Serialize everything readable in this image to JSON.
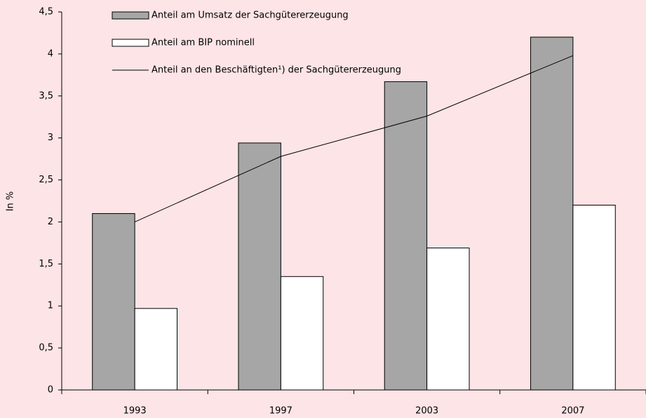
{
  "chart_data": {
    "type": "bar",
    "categories": [
      "1993",
      "1997",
      "2003",
      "2007"
    ],
    "y_label": "In %",
    "series": [
      {
        "name": "Anteil am Umsatz der Sachgütererzeugung",
        "type": "bar",
        "color": "#a6a6a6",
        "values": [
          2.1,
          2.94,
          3.67,
          4.2
        ]
      },
      {
        "name": "Anteil am BIP nominell",
        "type": "bar",
        "color": "#ffffff",
        "values": [
          0.97,
          1.35,
          1.69,
          2.2
        ]
      },
      {
        "name": "Anteil an den Beschäftigten¹) der Sachgütererzeugung",
        "type": "line",
        "color": "#000000",
        "values": [
          2.0,
          2.78,
          3.26,
          3.98
        ]
      }
    ],
    "ylim": [
      0,
      4.5
    ],
    "yticks": [
      0,
      {
        "value": 0.5,
        "label": "0,5"
      },
      1,
      {
        "value": 1.5,
        "label": "1,5"
      },
      2,
      {
        "value": 2.5,
        "label": "2,5"
      },
      3,
      {
        "value": 3.5,
        "label": "3,5"
      },
      4,
      {
        "value": 4.5,
        "label": "4,5"
      }
    ],
    "grid": false,
    "legend": "top"
  }
}
